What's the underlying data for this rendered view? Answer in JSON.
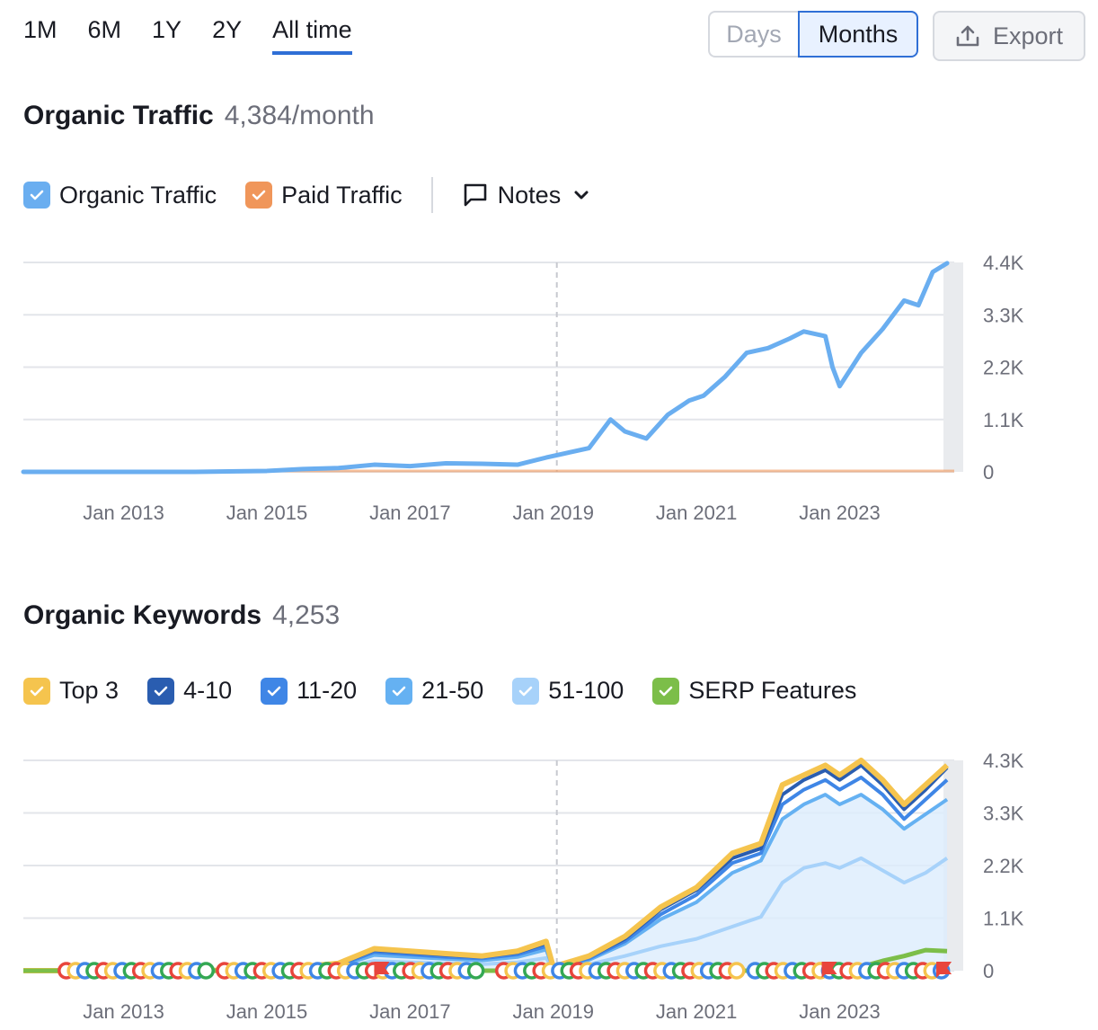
{
  "range_tabs": [
    "1M",
    "6M",
    "1Y",
    "2Y",
    "All time"
  ],
  "active_tab": "All time",
  "toggle": {
    "days": "Days",
    "months": "Months"
  },
  "export_label": "Export",
  "traffic": {
    "title": "Organic Traffic",
    "value": "4,384/month",
    "legend": {
      "organic": "Organic Traffic",
      "paid": "Paid Traffic",
      "notes": "Notes"
    }
  },
  "keywords": {
    "title": "Organic Keywords",
    "value": "4,253",
    "legend": {
      "top3": "Top 3",
      "p4_10": "4-10",
      "p11_20": "11-20",
      "p21_50": "21-50",
      "p51_100": "51-100",
      "serp": "SERP Features"
    }
  },
  "colors": {
    "organic": "#6aaef0",
    "paid": "#f0965a",
    "top3": "#f5c44e",
    "p4_10": "#2a5db0",
    "p11_20": "#3f86e6",
    "p21_50": "#65b1f2",
    "p51_100": "#a7d2fa",
    "serp": "#7cbe49",
    "grid": "#e3e5ea",
    "accent": "#2f6fd6"
  },
  "chart_data": [
    {
      "type": "line",
      "title": "Organic Traffic",
      "x_ticks": [
        "Jan 2013",
        "Jan 2015",
        "Jan 2017",
        "Jan 2019",
        "Jan 2021",
        "Jan 2023"
      ],
      "y_ticks": [
        "0",
        "1.1K",
        "2.2K",
        "3.3K",
        "4.4K"
      ],
      "ylim": [
        0,
        4400
      ],
      "xlim": [
        2011.6,
        2024.6
      ],
      "series": [
        {
          "name": "Organic Traffic",
          "x": [
            2011.6,
            2014.0,
            2015.0,
            2015.5,
            2016.0,
            2016.5,
            2017.0,
            2017.5,
            2018.0,
            2018.5,
            2018.9,
            2019.2,
            2019.5,
            2019.8,
            2020.0,
            2020.3,
            2020.6,
            2020.9,
            2021.1,
            2021.4,
            2021.7,
            2022.0,
            2022.3,
            2022.5,
            2022.8,
            2022.9,
            2023.0,
            2023.3,
            2023.6,
            2023.9,
            2024.1,
            2024.3,
            2024.5
          ],
          "y": [
            0,
            0,
            20,
            60,
            80,
            150,
            120,
            180,
            170,
            150,
            300,
            400,
            500,
            1100,
            850,
            700,
            1200,
            1500,
            1600,
            2000,
            2500,
            2600,
            2800,
            2950,
            2850,
            2200,
            1800,
            2500,
            3000,
            3600,
            3500,
            4200,
            4384
          ]
        },
        {
          "name": "Paid Traffic",
          "x": [
            2011.6,
            2024.6
          ],
          "y": [
            0,
            0
          ]
        }
      ]
    },
    {
      "type": "area",
      "title": "Organic Keywords",
      "x_ticks": [
        "Jan 2013",
        "Jan 2015",
        "Jan 2017",
        "Jan 2019",
        "Jan 2021",
        "Jan 2023"
      ],
      "y_ticks": [
        "0",
        "1.1K",
        "2.2K",
        "3.3K",
        "4.3K"
      ],
      "ylim": [
        0,
        4300
      ],
      "xlim": [
        2011.6,
        2024.6
      ],
      "x": [
        2011.6,
        2014.0,
        2015.0,
        2016.0,
        2016.5,
        2017.0,
        2017.5,
        2018.0,
        2018.5,
        2018.9,
        2019.0,
        2019.5,
        2020.0,
        2020.5,
        2021.0,
        2021.5,
        2021.9,
        2022.2,
        2022.5,
        2022.8,
        2023.0,
        2023.3,
        2023.6,
        2023.9,
        2024.2,
        2024.5
      ],
      "series": [
        {
          "name": "Top 3",
          "values": [
            0,
            0,
            20,
            150,
            450,
            400,
            350,
            300,
            400,
            600,
            80,
            300,
            700,
            1300,
            1700,
            2400,
            2600,
            3800,
            4000,
            4200,
            4000,
            4300,
            3900,
            3400,
            3800,
            4200
          ]
        },
        {
          "name": "4-10",
          "values": [
            0,
            0,
            15,
            130,
            420,
            370,
            320,
            280,
            370,
            560,
            70,
            280,
            650,
            1250,
            1650,
            2300,
            2500,
            3600,
            3900,
            4100,
            3900,
            4200,
            3800,
            3300,
            3700,
            4150
          ]
        },
        {
          "name": "11-20",
          "values": [
            0,
            0,
            10,
            110,
            380,
            330,
            280,
            250,
            330,
            500,
            60,
            250,
            600,
            1150,
            1550,
            2200,
            2400,
            3400,
            3700,
            3900,
            3700,
            3950,
            3600,
            3100,
            3500,
            3900
          ]
        },
        {
          "name": "21-50",
          "values": [
            0,
            0,
            8,
            90,
            320,
            280,
            240,
            210,
            280,
            430,
            50,
            220,
            550,
            1050,
            1400,
            2000,
            2250,
            3100,
            3400,
            3600,
            3400,
            3600,
            3300,
            2900,
            3200,
            3500
          ]
        },
        {
          "name": "51-100",
          "values": [
            0,
            0,
            5,
            50,
            200,
            170,
            150,
            130,
            170,
            260,
            30,
            130,
            300,
            500,
            650,
            900,
            1100,
            1800,
            2100,
            2200,
            2100,
            2300,
            2050,
            1800,
            2000,
            2300
          ]
        },
        {
          "name": "SERP Features",
          "values": [
            0,
            0,
            0,
            0,
            0,
            0,
            0,
            0,
            0,
            0,
            0,
            0,
            0,
            0,
            0,
            0,
            0,
            0,
            0,
            0,
            0,
            80,
            200,
            300,
            420,
            400
          ]
        }
      ]
    }
  ]
}
